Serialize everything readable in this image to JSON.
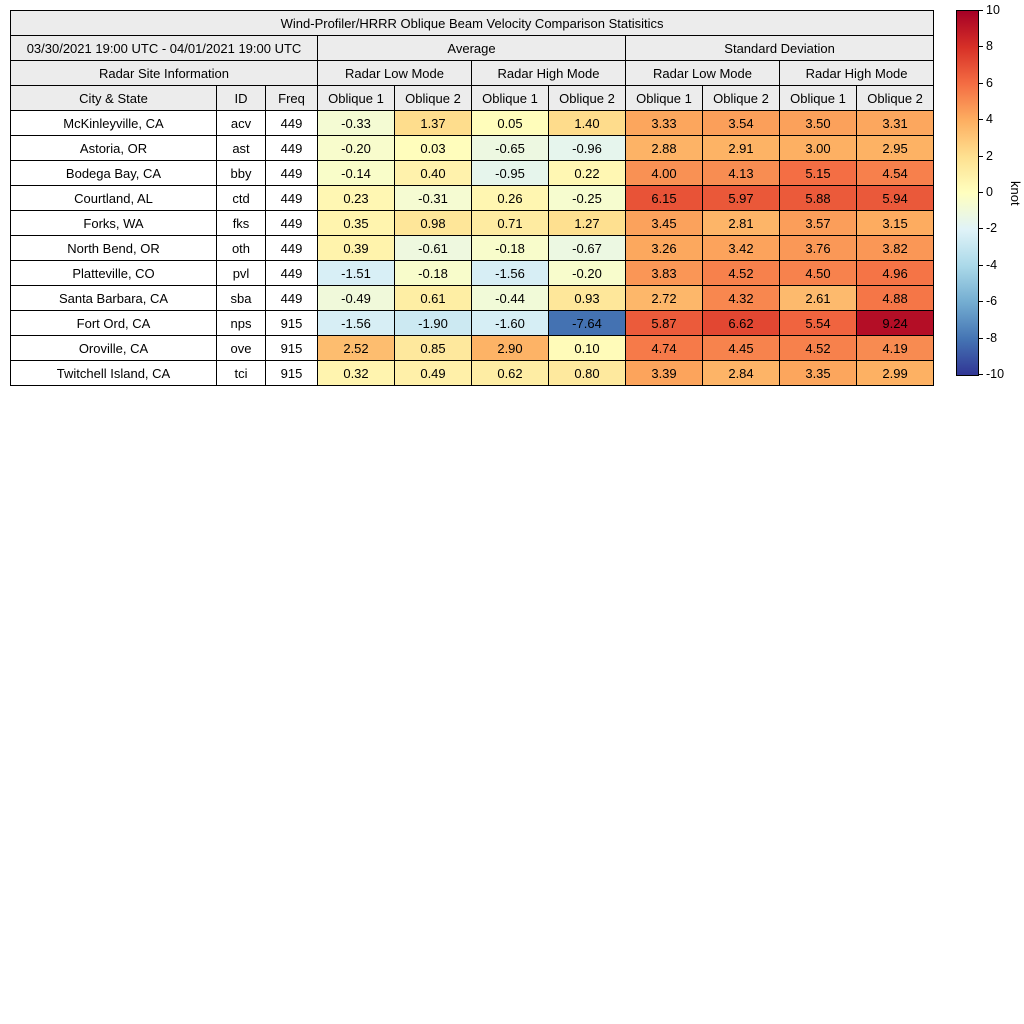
{
  "title": "Wind-Profiler/HRRR Oblique Beam Velocity Comparison Statisitics",
  "date_range": "03/30/2021 19:00 UTC - 04/01/2021 19:00 UTC",
  "groups": [
    "Average",
    "Standard Deviation"
  ],
  "site_info_header": "Radar Site Information",
  "mode_headers": [
    "Radar Low Mode",
    "Radar High Mode",
    "Radar Low Mode",
    "Radar High Mode"
  ],
  "col_headers": [
    "City & State",
    "ID",
    "Freq"
  ],
  "oblique_headers": [
    "Oblique 1",
    "Oblique 2",
    "Oblique 1",
    "Oblique 2",
    "Oblique 1",
    "Oblique 2",
    "Oblique 1",
    "Oblique 2"
  ],
  "chart_data": {
    "type": "heatmap",
    "title": "Wind-Profiler/HRRR Oblique Beam Velocity Comparison Statisitics",
    "units": "knot",
    "value_range": [
      -10,
      10
    ],
    "column_groups": [
      "Average Radar Low Mode Oblique 1",
      "Average Radar Low Mode Oblique 2",
      "Average Radar High Mode Oblique 1",
      "Average Radar High Mode Oblique 2",
      "Std Radar Low Mode Oblique 1",
      "Std Radar Low Mode Oblique 2",
      "Std Radar High Mode Oblique 1",
      "Std Radar High Mode Oblique 2"
    ],
    "rows": [
      {
        "city": "McKinleyville, CA",
        "id": "acv",
        "freq": "449",
        "values": [
          -0.33,
          1.37,
          0.05,
          1.4,
          3.33,
          3.54,
          3.5,
          3.31
        ]
      },
      {
        "city": "Astoria, OR",
        "id": "ast",
        "freq": "449",
        "values": [
          -0.2,
          0.03,
          -0.65,
          -0.96,
          2.88,
          2.91,
          3.0,
          2.95
        ]
      },
      {
        "city": "Bodega Bay, CA",
        "id": "bby",
        "freq": "449",
        "values": [
          -0.14,
          0.4,
          -0.95,
          0.22,
          4.0,
          4.13,
          5.15,
          4.54
        ]
      },
      {
        "city": "Courtland, AL",
        "id": "ctd",
        "freq": "449",
        "values": [
          0.23,
          -0.31,
          0.26,
          -0.25,
          6.15,
          5.97,
          5.88,
          5.94
        ]
      },
      {
        "city": "Forks, WA",
        "id": "fks",
        "freq": "449",
        "values": [
          0.35,
          0.98,
          0.71,
          1.27,
          3.45,
          2.81,
          3.57,
          3.15
        ]
      },
      {
        "city": "North Bend, OR",
        "id": "oth",
        "freq": "449",
        "values": [
          0.39,
          -0.61,
          -0.18,
          -0.67,
          3.26,
          3.42,
          3.76,
          3.82
        ]
      },
      {
        "city": "Platteville, CO",
        "id": "pvl",
        "freq": "449",
        "values": [
          -1.51,
          -0.18,
          -1.56,
          -0.2,
          3.83,
          4.52,
          4.5,
          4.96
        ]
      },
      {
        "city": "Santa Barbara, CA",
        "id": "sba",
        "freq": "449",
        "values": [
          -0.49,
          0.61,
          -0.44,
          0.93,
          2.72,
          4.32,
          2.61,
          4.88
        ]
      },
      {
        "city": "Fort Ord, CA",
        "id": "nps",
        "freq": "915",
        "values": [
          -1.56,
          -1.9,
          -1.6,
          -7.64,
          5.87,
          6.62,
          5.54,
          9.24
        ]
      },
      {
        "city": "Oroville, CA",
        "id": "ove",
        "freq": "915",
        "values": [
          2.52,
          0.85,
          2.9,
          0.1,
          4.74,
          4.45,
          4.52,
          4.19
        ]
      },
      {
        "city": "Twitchell Island, CA",
        "id": "tci",
        "freq": "915",
        "values": [
          0.32,
          0.49,
          0.62,
          0.8,
          3.39,
          2.84,
          3.35,
          2.99
        ]
      }
    ]
  },
  "colorbar": {
    "label": "knot",
    "min": -10,
    "max": 10,
    "ticks": [
      10,
      8,
      6,
      4,
      2,
      0,
      -2,
      -4,
      -6,
      -8,
      -10
    ],
    "colormap_top_to_bottom": [
      "#a50026",
      "#d73027",
      "#f46d43",
      "#fdae61",
      "#fee090",
      "#ffffbf",
      "#e0f3f8",
      "#abd9e9",
      "#74add1",
      "#4575b4",
      "#313695"
    ]
  }
}
